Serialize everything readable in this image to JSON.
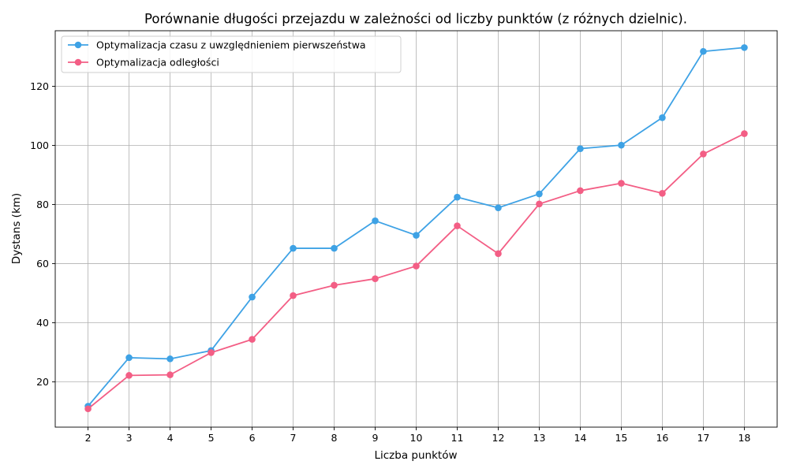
{
  "chart_data": {
    "type": "line",
    "title": "Porównanie długości przejazdu w zależności od liczby punktów (z różnych dzielnic).",
    "xlabel": "Liczba punktów",
    "ylabel": "Dystans (km)",
    "x": [
      2,
      3,
      4,
      5,
      6,
      7,
      8,
      9,
      10,
      11,
      12,
      13,
      14,
      15,
      16,
      17,
      18
    ],
    "xlim": [
      1.2,
      18.8
    ],
    "ylim": [
      4.7,
      138.8
    ],
    "yticks": [
      20,
      40,
      60,
      80,
      100,
      120
    ],
    "grid": true,
    "legend_position": "top-left",
    "series": [
      {
        "name": "Optymalizacja czasu z uwzględnieniem pierwszeństwa",
        "color": "#3ea2e5",
        "values": [
          11.8,
          28.2,
          27.8,
          30.6,
          48.7,
          65.2,
          65.2,
          74.5,
          69.6,
          82.5,
          78.9,
          83.6,
          98.9,
          100.1,
          109.4,
          131.8,
          133.1
        ]
      },
      {
        "name": "Optymalizacja odległości",
        "color": "#f35e85",
        "values": [
          10.9,
          22.2,
          22.4,
          29.9,
          34.4,
          49.2,
          52.7,
          54.9,
          59.2,
          72.8,
          63.4,
          80.2,
          84.7,
          87.2,
          83.8,
          97.1,
          104.0
        ]
      }
    ]
  }
}
